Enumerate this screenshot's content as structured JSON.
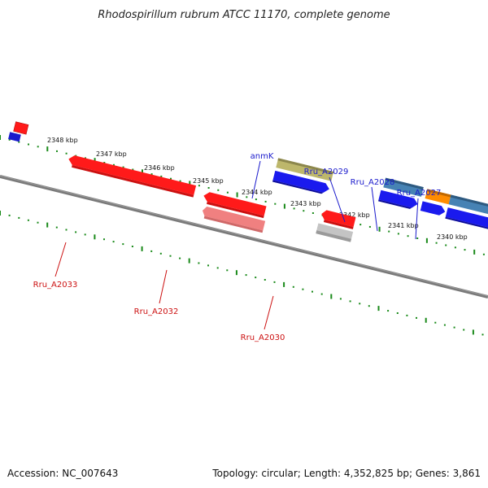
{
  "title": "Rhodospirillum rubrum ATCC 11170, complete genome",
  "footer": {
    "accession": "Accession: NC_007643",
    "summary": "Topology: circular; Length: 4,352,825 bp; Genes: 3,861"
  },
  "colors": {
    "backbone": "#7a7a7a",
    "tick": "#1a8a1a",
    "forward_label": "#1a1acc",
    "reverse_label": "#cc1111",
    "kbp_label": "#111111"
  },
  "scale_labels": [
    "2348 kbp",
    "2347 kbp",
    "2346 kbp",
    "2345 kbp",
    "2344 kbp",
    "2343 kbp",
    "2342 kbp",
    "2341 kbp",
    "2340 kbp"
  ],
  "gene_labels": [
    {
      "text": "anmK",
      "strand": "forward"
    },
    {
      "text": "Rru_A2029",
      "strand": "forward"
    },
    {
      "text": "Rru_A2028",
      "strand": "forward"
    },
    {
      "text": "Rru_A2027",
      "strand": "forward"
    },
    {
      "text": "Rru_A2033",
      "strand": "reverse"
    },
    {
      "text": "Rru_A2032",
      "strand": "reverse"
    },
    {
      "text": "Rru_A2030",
      "strand": "reverse"
    }
  ],
  "features": [
    {
      "name": "forward-upper-left-feature",
      "color": "#ff1a1a"
    },
    {
      "name": "reverse-left-edge-feature",
      "color": "#1a1acc"
    },
    {
      "name": "Rru_A2033",
      "color": "#ff1a1a"
    },
    {
      "name": "red-arrow-mid",
      "color": "#ff1a1a"
    },
    {
      "name": "Rru_A2032",
      "color": "#f08080"
    },
    {
      "name": "anmK",
      "color": "#bdb76b"
    },
    {
      "name": "blue-arrow-under-anmK",
      "color": "#1a1aee"
    },
    {
      "name": "red-arrow-small",
      "color": "#ff1a1a"
    },
    {
      "name": "Rru_A2030",
      "color": "#b8b8b8"
    },
    {
      "name": "Rru_A2029",
      "color": "#4682b4"
    },
    {
      "name": "blue-arrow-under-2029",
      "color": "#1a1aee"
    },
    {
      "name": "orange-feature",
      "color": "#ff8c00"
    },
    {
      "name": "Rru_A2028",
      "color": "#4682b4"
    },
    {
      "name": "blue-arrow-2",
      "color": "#1a1aee"
    },
    {
      "name": "Rru_A2027",
      "color": "#1a1aee"
    },
    {
      "name": "cyan-feature",
      "color": "#00e5ee"
    },
    {
      "name": "orange-feature-right",
      "color": "#ff8c00"
    },
    {
      "name": "blue-arrow-small",
      "color": "#1a1aee"
    },
    {
      "name": "blue-arrow-right",
      "color": "#1a1aee"
    }
  ]
}
